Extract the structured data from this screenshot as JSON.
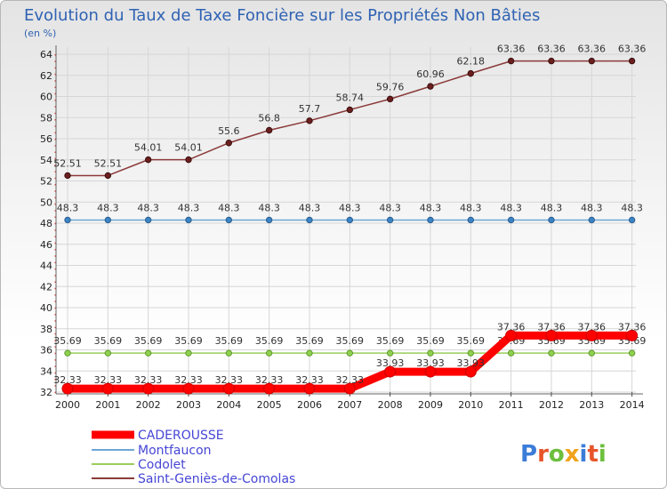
{
  "chart_data": {
    "type": "line",
    "title": "Evolution du Taux de Taxe Foncière sur les Propriétés Non Bâties",
    "subtitle": "(en %)",
    "xlabel": "",
    "ylabel": "(en %)",
    "x": [
      "2000",
      "2001",
      "2002",
      "2003",
      "2004",
      "2005",
      "2006",
      "2007",
      "2008",
      "2009",
      "2010",
      "2011",
      "2012",
      "2013",
      "2014"
    ],
    "ylim": [
      32,
      64
    ],
    "yticks": [
      32,
      34,
      36,
      38,
      40,
      42,
      44,
      46,
      48,
      50,
      52,
      54,
      56,
      58,
      60,
      62,
      64
    ],
    "grid": true,
    "legend_position": "bottom-left",
    "series": [
      {
        "name": "CADEROUSSE",
        "color": "#ff0000",
        "values": [
          32.33,
          32.33,
          32.33,
          32.33,
          32.33,
          32.33,
          32.33,
          32.33,
          33.93,
          33.93,
          33.93,
          37.36,
          37.36,
          37.36,
          37.36
        ],
        "labels": [
          "32.33",
          "32.33",
          "32.33",
          "32.33",
          "32.33",
          "32.33",
          "32.33",
          "32.33",
          "33.93",
          "33.93",
          "33.93",
          "37.36",
          "37.36",
          "37.36",
          "37.36"
        ]
      },
      {
        "name": "Montfaucon",
        "color": "#6fa7d4",
        "values": [
          48.3,
          48.3,
          48.3,
          48.3,
          48.3,
          48.3,
          48.3,
          48.3,
          48.3,
          48.3,
          48.3,
          48.3,
          48.3,
          48.3,
          48.3
        ],
        "labels": [
          "48.3",
          "48.3",
          "48.3",
          "48.3",
          "48.3",
          "48.3",
          "48.3",
          "48.3",
          "48.3",
          "48.3",
          "48.3",
          "48.3",
          "48.3",
          "48.3",
          "48.3"
        ]
      },
      {
        "name": "Codolet",
        "color": "#9acd5a",
        "values": [
          35.69,
          35.69,
          35.69,
          35.69,
          35.69,
          35.69,
          35.69,
          35.69,
          35.69,
          35.69,
          35.69,
          35.69,
          35.69,
          35.69,
          35.69
        ],
        "labels": [
          "35.69",
          "35.69",
          "35.69",
          "35.69",
          "35.69",
          "35.69",
          "35.69",
          "35.69",
          "35.69",
          "35.69",
          "35.69",
          "35.69",
          "35.69",
          "35.69",
          "35.69"
        ]
      },
      {
        "name": "Saint-Geniès-de-Comolas",
        "color": "#8b3a3a",
        "values": [
          52.51,
          52.51,
          54.01,
          54.01,
          55.6,
          56.8,
          57.7,
          58.74,
          59.76,
          60.96,
          62.18,
          63.36,
          63.36,
          63.36,
          63.36
        ],
        "labels": [
          "52.51",
          "52.51",
          "54.01",
          "54.01",
          "55.6",
          "56.8",
          "57.7",
          "58.74",
          "59.76",
          "60.96",
          "62.18",
          "63.36",
          "63.36",
          "63.36",
          "63.36"
        ]
      }
    ]
  },
  "logo": {
    "text": "Proxiti",
    "letters": [
      "P",
      "r",
      "o",
      "x",
      "i",
      "t",
      "i"
    ],
    "colors": [
      "#3b7dd8",
      "#e8542a",
      "#6cbf3c",
      "#f0a21a",
      "#3b7dd8",
      "#e8542a",
      "#6cbf3c"
    ]
  }
}
